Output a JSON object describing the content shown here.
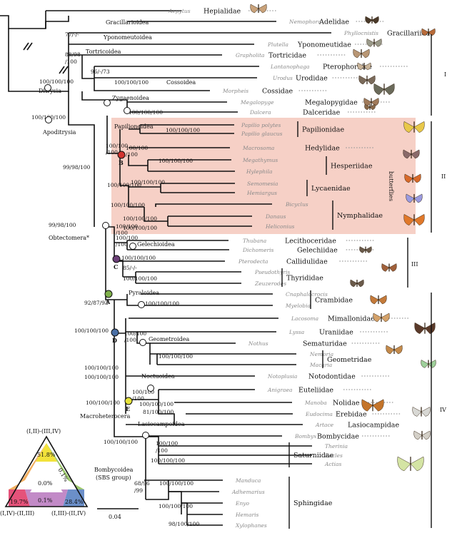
{
  "taxa": [
    {
      "genus": "Aepytus",
      "family": "Hepialidae"
    },
    {
      "genus": "Nemophora",
      "family": "Adelidae"
    },
    {
      "genus": "Phyllocnistis",
      "family": "Gracillariidae"
    },
    {
      "genus": "Plutella",
      "family": "Yponomeutidae"
    },
    {
      "genus": "Grapholita",
      "family": "Tortricidae"
    },
    {
      "genus": "Lantanophaga",
      "family": "Pterophoridae"
    },
    {
      "genus": "Urodus",
      "family": "Urodidae"
    },
    {
      "genus": "Morpheis",
      "family": "Cossidae"
    },
    {
      "genus": "Megalopyge",
      "family": "Megalopygidae"
    },
    {
      "genus": "Dalcera",
      "family": "Dalceridae"
    },
    {
      "genus": "Papilio polytes",
      "family": ""
    },
    {
      "genus": "Papilio glaucus",
      "family": ""
    },
    {
      "genus": "Macrosoma",
      "family": "Hedylidae"
    },
    {
      "genus": "Megathymus",
      "family": ""
    },
    {
      "genus": "Hylephila",
      "family": ""
    },
    {
      "genus": "Semomesia",
      "family": ""
    },
    {
      "genus": "Hemiargus",
      "family": ""
    },
    {
      "genus": "Bicyclus",
      "family": ""
    },
    {
      "genus": "Danaus",
      "family": ""
    },
    {
      "genus": "Heliconius",
      "family": ""
    },
    {
      "genus": "Thubana",
      "family": "Lecithoceridae"
    },
    {
      "genus": "Dichomeris",
      "family": "Gelechiidae"
    },
    {
      "genus": "Pterodecta",
      "family": "Callidulidae"
    },
    {
      "genus": "Pseudothyris",
      "family": ""
    },
    {
      "genus": "Zeuzerodes",
      "family": ""
    },
    {
      "genus": "Cnaphalocrocis",
      "family": ""
    },
    {
      "genus": "Myelobia",
      "family": ""
    },
    {
      "genus": "Lacosoma",
      "family": "Mimallonidae"
    },
    {
      "genus": "Lyssa",
      "family": "Uraniidae"
    },
    {
      "genus": "Nothus",
      "family": "Sematuridae"
    },
    {
      "genus": "Nemoria",
      "family": ""
    },
    {
      "genus": "Macaria",
      "family": ""
    },
    {
      "genus": "Notoplusia",
      "family": "Notodontidae"
    },
    {
      "genus": "Anigraea",
      "family": "Euteliidae"
    },
    {
      "genus": "Manoba",
      "family": "Nolidae"
    },
    {
      "genus": "Eudocima",
      "family": "Erebidae"
    },
    {
      "genus": "Artace",
      "family": "Lasiocampidae"
    },
    {
      "genus": "Bombyx",
      "family": "Bombycidae"
    },
    {
      "genus": "Therinia",
      "family": ""
    },
    {
      "genus": "Eacles",
      "family": ""
    },
    {
      "genus": "Actias",
      "family": ""
    },
    {
      "genus": "Manduca",
      "family": ""
    },
    {
      "genus": "Adhemarius",
      "family": ""
    },
    {
      "genus": "Enyo",
      "family": ""
    },
    {
      "genus": "Hemaris",
      "family": ""
    },
    {
      "genus": "Xylophanes",
      "family": ""
    }
  ],
  "bracket_families": [
    {
      "label": "Papilionidae"
    },
    {
      "label": "Hesperiidae"
    },
    {
      "label": "Lycaenidae"
    },
    {
      "label": "Nymphalidae"
    },
    {
      "label": "Thyrididae"
    },
    {
      "label": "Crambidae"
    },
    {
      "label": "Geometridae"
    },
    {
      "label": "Saturniidae"
    },
    {
      "label": "Sphingidae"
    }
  ],
  "superfamilies": [
    "Gracillarioidea",
    "Yponomeutoidea",
    "Tortricoidea",
    "Cossoidea",
    "Zygaenoidea",
    "Papilionoidea",
    "Gelechioidea",
    "Pyraloidea",
    "Geometroidea",
    "Noctuoidea",
    "Lasiocampoidea"
  ],
  "clade_labels": {
    "ditrysia": "Ditrysia",
    "apoditrysia": "Apoditrysia",
    "obtectomera": "Obtectomera*",
    "macroheterocera": "Macroheterocera",
    "bombycoidea": "Bombycoidea",
    "sbs_group": "(SBS group)",
    "butterflies": "butterflies"
  },
  "node_letters": [
    "A",
    "B",
    "C",
    "D",
    "E"
  ],
  "supports": [
    "77/-/-",
    "88/98",
    "/100",
    "96/-/73",
    "100/100/100",
    "100/100/100",
    "100/100/100",
    "100/100/100",
    "100/100",
    "/100",
    "99/98/100",
    "99/98/100",
    "100/100/100",
    "100/100/100",
    "100/100/100",
    "100/100",
    "/100",
    "100/100/100",
    "100/100/100",
    "100/100/100",
    "100/100/100",
    "100/100",
    "/100",
    "100/100/100",
    "85/-/-",
    "100/100/100",
    "92/87/93",
    "100/100/100",
    "100/100/100",
    "100/100",
    "/100",
    "100/100/100",
    "100/100/100",
    "100/100/100",
    "100/100",
    "/100",
    "100/100/100",
    "81/100/100",
    "100/100/100",
    "100/100/100",
    "100/100",
    "/100",
    "68/96",
    "/99",
    "100/100/100",
    "100/100/100",
    "98/100/100",
    "100/100/100",
    "100/100",
    "/100"
  ],
  "groups": [
    "I",
    "II",
    "III",
    "IV"
  ],
  "scale_bar": "0.04",
  "triangle": {
    "corners": [
      "(I,II)-(III,IV)",
      "(I,IV)-(II,III)",
      "(I,III)-(II,IV)"
    ],
    "percents": [
      "51.8%",
      "19.7%",
      "28.4%",
      "0.0%",
      "0.1%",
      "0.1%"
    ],
    "colors": {
      "top": "#f2e23b",
      "left": "#e5527a",
      "right": "#6b8fc9",
      "edge_left": "#f3b061",
      "edge_right": "#9ec96e",
      "edge_bottom": "#c28ac7"
    }
  },
  "node_colors": {
    "A": "#7fb04a",
    "B": "#d1332f",
    "C": "#6b3f77",
    "D": "#4a6fa5",
    "E": "#e6e33a"
  },
  "highlight_color": "#f6d0c6"
}
